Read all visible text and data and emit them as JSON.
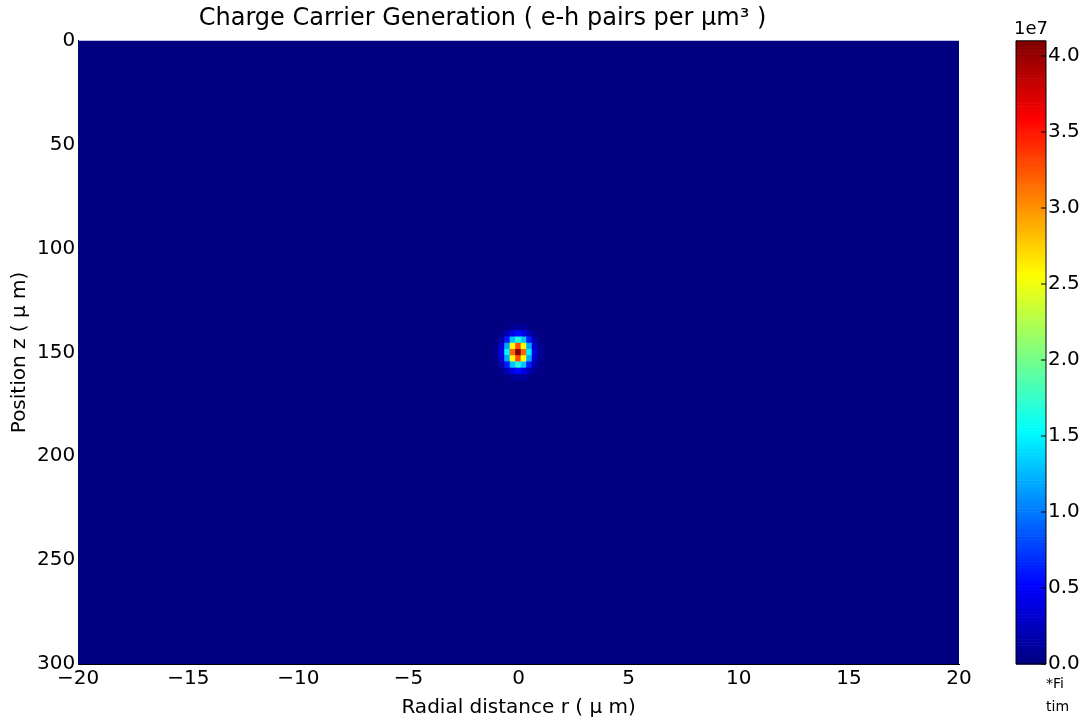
{
  "chart_data": {
    "type": "scatter",
    "title": "Charge Carrier Generation ( e-h pairs per μm³ )",
    "xlabel": "Radial distance r ( μ m)",
    "ylabel": "Position z ( μ m)",
    "marker": "square",
    "x": [
      -0.25,
      0,
      0.25,
      -0.75,
      -0.5,
      -0.25,
      0,
      0.25,
      0.5,
      0.75,
      -0.75,
      -0.5,
      -0.25,
      0,
      0.25,
      0.5,
      0.75,
      -1,
      -0.75,
      -0.5,
      -0.25,
      0,
      0.25,
      0.5,
      0.75,
      1,
      -1,
      -0.75,
      -0.5,
      -0.25,
      0,
      0.25,
      0.5,
      0.75,
      1,
      -1,
      -0.75,
      -0.5,
      -0.25,
      0,
      0.25,
      0.5,
      0.75,
      1,
      -0.75,
      -0.5,
      -0.25,
      0,
      0.25,
      0.5,
      0.75,
      -0.75,
      -0.5,
      -0.25,
      0,
      0.25,
      0.5,
      0.75,
      -0.25,
      0,
      0.25
    ],
    "values": [
      138,
      138,
      138,
      141,
      141,
      141,
      141,
      141,
      141,
      141,
      144,
      144,
      144,
      144,
      144,
      144,
      144,
      147,
      147,
      147,
      147,
      147,
      147,
      147,
      147,
      147,
      150,
      150,
      150,
      150,
      150,
      150,
      150,
      150,
      150,
      153,
      153,
      153,
      153,
      153,
      153,
      153,
      153,
      153,
      156,
      156,
      156,
      156,
      156,
      156,
      156,
      159,
      159,
      159,
      159,
      159,
      159,
      159,
      162,
      162,
      162
    ],
    "cvalues": [
      0.09,
      0.12,
      0.09,
      0.06,
      0.2,
      0.43,
      0.55,
      0.43,
      0.2,
      0.06,
      0.17,
      0.61,
      1.3,
      1.68,
      1.3,
      0.61,
      0.17,
      0.06,
      0.33,
      1.18,
      2.54,
      3.28,
      2.54,
      1.18,
      0.33,
      0.06,
      0.07,
      0.41,
      1.48,
      3.18,
      4.1,
      3.18,
      1.48,
      0.41,
      0.07,
      0.06,
      0.33,
      1.18,
      2.54,
      3.28,
      2.54,
      1.18,
      0.33,
      0.06,
      0.17,
      0.61,
      1.3,
      1.68,
      1.3,
      0.61,
      0.17,
      0.06,
      0.2,
      0.43,
      0.55,
      0.43,
      0.2,
      0.06,
      0.09,
      0.12,
      0.09
    ],
    "xlim": [
      -20,
      20
    ],
    "xticks": [
      {
        "value": -20,
        "label": "−20"
      },
      {
        "value": -15,
        "label": "−15"
      },
      {
        "value": -10,
        "label": "−10"
      },
      {
        "value": -5,
        "label": "−5"
      },
      0,
      5,
      10,
      15,
      20
    ],
    "ylim": [
      300,
      0
    ],
    "yticks": [
      0,
      50,
      100,
      150,
      200,
      250,
      300
    ],
    "clim": [
      0,
      4.1
    ],
    "cticks": [
      {
        "value": 0,
        "label": "0.0"
      },
      0.5,
      {
        "value": 1,
        "label": "1.0"
      },
      1.5,
      {
        "value": 2,
        "label": "2.0"
      },
      2.5,
      {
        "value": 3,
        "label": "3.0"
      },
      3.5,
      {
        "value": 4,
        "label": "4.0"
      }
    ],
    "annotations": [
      "1e7",
      "*Fi",
      "tim"
    ]
  }
}
